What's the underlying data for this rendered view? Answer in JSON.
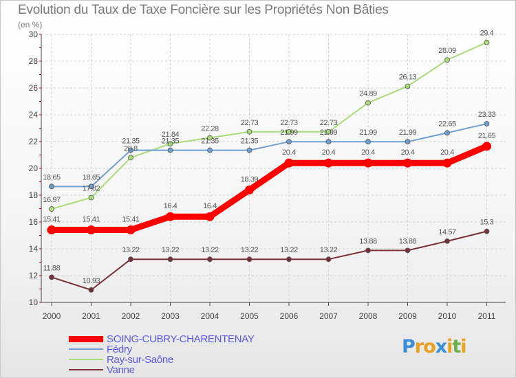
{
  "chart_data": {
    "type": "line",
    "title": "Evolution du Taux de Taxe Foncière sur les Propriétés Non Bâties",
    "subtitle": "(en %)",
    "xlabel": "",
    "ylabel": "",
    "ylim": [
      10,
      30
    ],
    "yticks": [
      "10",
      "12",
      "14",
      "16",
      "18",
      "20",
      "22",
      "24",
      "26",
      "28",
      "30"
    ],
    "categories": [
      "2000",
      "2001",
      "2002",
      "2003",
      "2004",
      "2005",
      "2006",
      "2007",
      "2008",
      "2009",
      "2010",
      "2011"
    ],
    "grid": true,
    "legend_position": "bottom-left",
    "series": [
      {
        "name": "SOING-CUBRY-CHARENTENAY",
        "color": "#ff0000",
        "values": [
          15.41,
          15.41,
          15.41,
          16.4,
          16.4,
          18.39,
          20.4,
          20.4,
          20.4,
          20.4,
          20.4,
          21.65
        ],
        "labels": [
          "15.41",
          "15.41",
          "15.41",
          "16.4",
          "16.4",
          "18.39",
          "20.4",
          "20.4",
          "20.4",
          "20.4",
          "20.4",
          "21.65"
        ]
      },
      {
        "name": "Fédry",
        "color": "#6e9fd0",
        "values": [
          18.65,
          18.65,
          21.35,
          21.35,
          21.35,
          21.35,
          21.99,
          21.99,
          21.99,
          21.99,
          22.65,
          23.33
        ],
        "labels": [
          "18.65",
          "18.65",
          "21.35",
          "21.35",
          "21.35",
          "21.35",
          "21.99",
          "21.99",
          "21.99",
          "21.99",
          "22.65",
          "23.33"
        ]
      },
      {
        "name": "Ray-sur-Saône",
        "color": "#a8dc78",
        "values": [
          16.97,
          17.82,
          20.8,
          21.84,
          22.28,
          22.73,
          22.73,
          22.73,
          24.89,
          26.13,
          28.09,
          29.4
        ],
        "labels": [
          "16.97",
          "17.82",
          "20.8",
          "21.84",
          "22.28",
          "22.73",
          "22.73",
          "22.73",
          "24.89",
          "26.13",
          "28.09",
          "29.4"
        ]
      },
      {
        "name": "Vanne",
        "color": "#7a3038",
        "values": [
          11.88,
          10.93,
          13.22,
          13.22,
          13.22,
          13.22,
          13.22,
          13.22,
          13.88,
          13.88,
          14.57,
          15.3
        ],
        "labels": [
          "11.88",
          "10.93",
          "13.22",
          "13.22",
          "13.22",
          "13.22",
          "13.22",
          "13.22",
          "13.88",
          "13.88",
          "14.57",
          "15.3"
        ]
      }
    ]
  },
  "logo": {
    "letters": [
      "P",
      "r",
      "o",
      "x",
      "i",
      "t",
      "i"
    ],
    "colors": [
      "#3a8fd8",
      "#e8a020",
      "#e8a020",
      "#3a8fd8",
      "#e8a020",
      "#6ab04c",
      "#e8a020"
    ]
  }
}
